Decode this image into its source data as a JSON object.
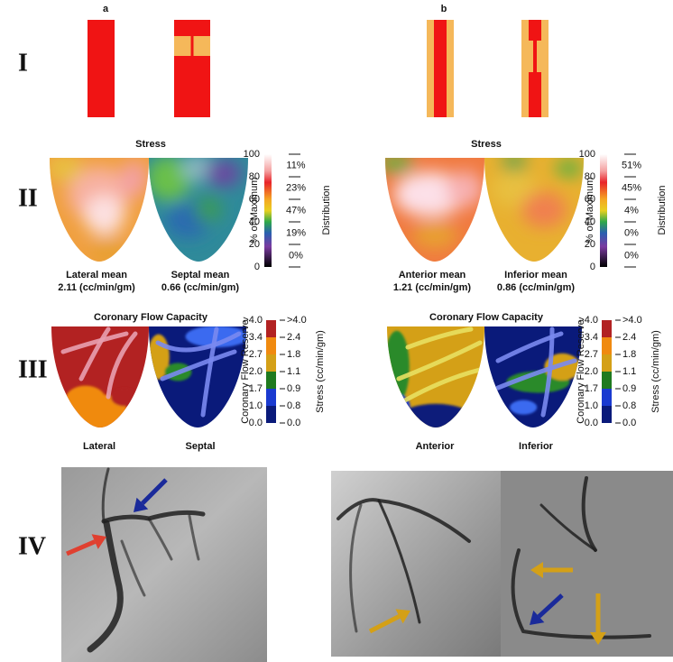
{
  "row_labels": [
    "I",
    "II",
    "III",
    "IV"
  ],
  "panels": [
    {
      "letter": "a",
      "stress": {
        "title": "Stress",
        "scale_ticks": [
          "100",
          "80",
          "60",
          "40",
          "20",
          "0"
        ],
        "scale_label": "% of Maximum",
        "distribution_label": "Distribution",
        "distribution": [
          "11%",
          "23%",
          "47%",
          "19%",
          "0%"
        ],
        "maps": [
          {
            "name": "Lateral mean",
            "value": "2.11 (cc/min/gm)"
          },
          {
            "name": "Septal mean",
            "value": "0.66 (cc/min/gm)"
          }
        ]
      },
      "cfc": {
        "title": "Coronary Flow Capacity",
        "cfr_ticks": [
          ">4.0",
          "3.4",
          "2.7",
          "2.0",
          "1.7",
          "1.0",
          "0.0"
        ],
        "stress_ticks": [
          ">4.0",
          "2.4",
          "1.8",
          "1.1",
          "0.9",
          "0.8",
          "0.0"
        ],
        "cfr_label": "Coronary Flow Reserve",
        "stress_label": "Stress (cc/min/gm)",
        "maps": [
          "Lateral",
          "Septal"
        ]
      }
    },
    {
      "letter": "b",
      "stress": {
        "title": "Stress",
        "scale_ticks": [
          "100",
          "80",
          "60",
          "40",
          "20",
          "0"
        ],
        "scale_label": "% of Maximum",
        "distribution_label": "Distribution",
        "distribution": [
          "51%",
          "45%",
          "4%",
          "0%",
          "0%"
        ],
        "maps": [
          {
            "name": "Anterior mean",
            "value": "1.21 (cc/min/gm)"
          },
          {
            "name": "Inferior mean",
            "value": "0.86 (cc/min/gm)"
          }
        ]
      },
      "cfc": {
        "title": "Coronary Flow Capacity",
        "cfr_ticks": [
          ">4.0",
          "3.4",
          "2.7",
          "2.0",
          "1.7",
          "1.0",
          "0.0"
        ],
        "stress_ticks": [
          ">4.0",
          "2.4",
          "1.8",
          "1.1",
          "0.9",
          "0.8",
          "0.0"
        ],
        "cfr_label": "Coronary Flow Reserve",
        "stress_label": "Stress (cc/min/gm)",
        "maps": [
          "Anterior",
          "Inferior"
        ]
      }
    }
  ]
}
